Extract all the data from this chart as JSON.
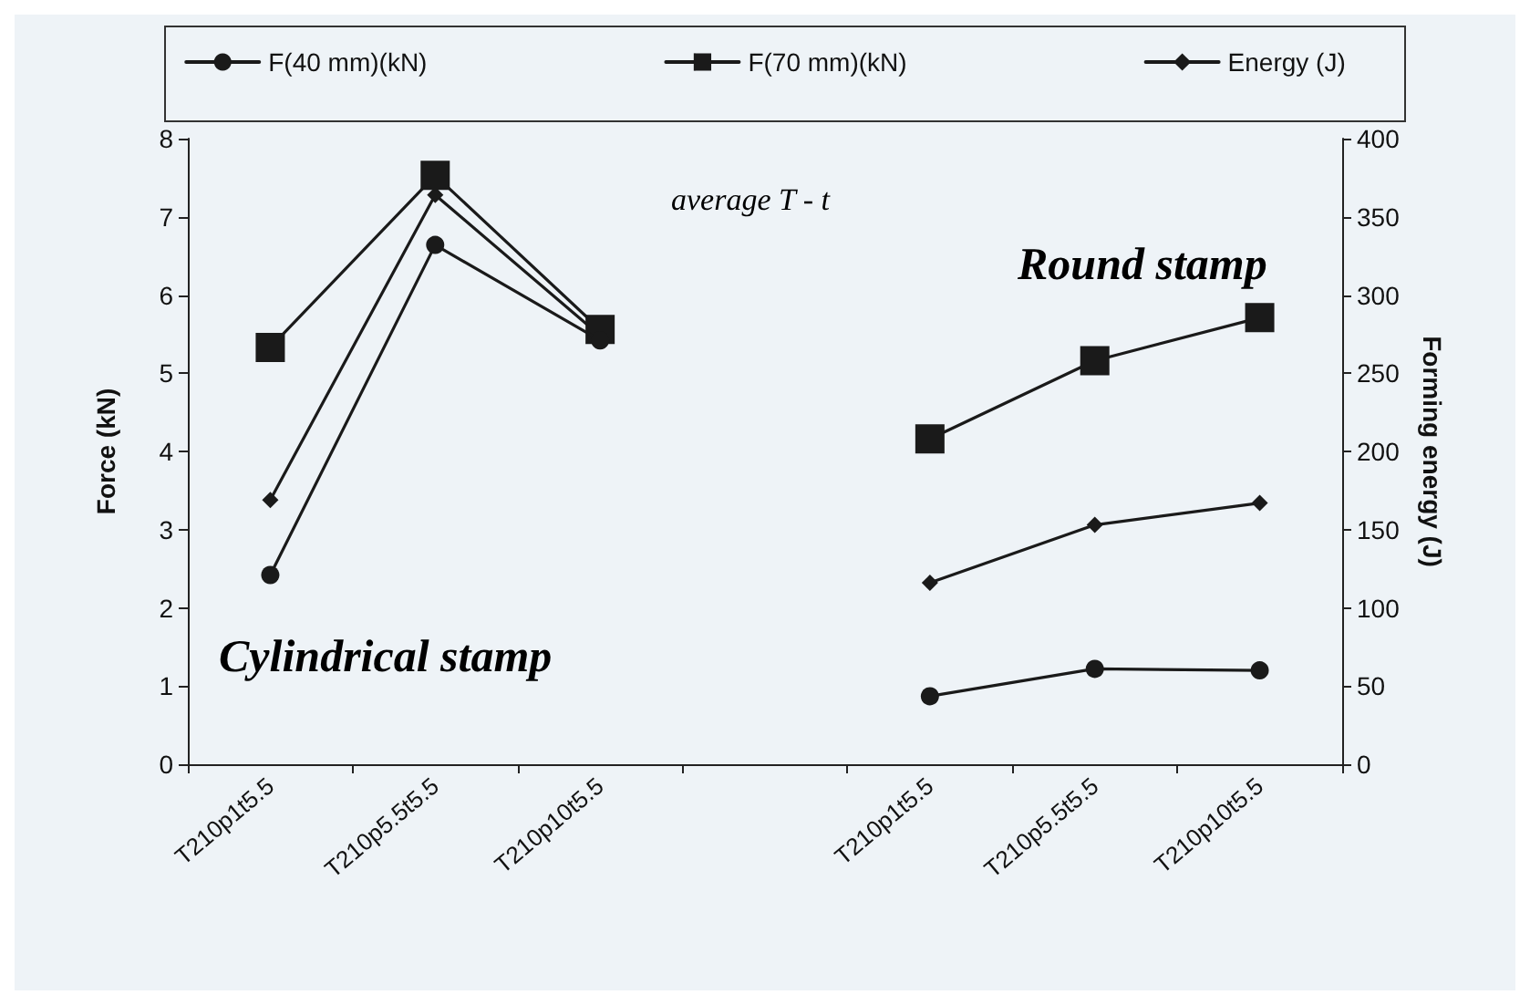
{
  "chart_data": {
    "type": "line",
    "ylabel": "Force (kN)",
    "y2label": "Forming energy (J)",
    "categories": [
      "T210p1t5.5",
      "T210p5.5t5.5",
      "T210p10t5.5",
      null,
      "T210p1t5.5",
      "T210p5.5t5.5",
      "T210p10t5.5"
    ],
    "ylim": [
      0,
      8
    ],
    "yticks": [
      0,
      1,
      2,
      3,
      4,
      5,
      6,
      7,
      8
    ],
    "y2lim": [
      0,
      400
    ],
    "y2ticks": [
      0,
      50,
      100,
      150,
      200,
      250,
      300,
      350,
      400
    ],
    "series": [
      {
        "name": "F(40 mm)(kN)",
        "color": "#1a1a1a",
        "marker": "circle",
        "values": [
          2.42,
          6.64,
          5.42,
          null,
          0.87,
          1.22,
          1.2
        ]
      },
      {
        "name": "F(70 mm)(kN)",
        "color": "#1a1a1a",
        "marker": "square",
        "values": [
          5.33,
          7.53,
          5.56,
          null,
          4.16,
          5.16,
          5.71
        ]
      },
      {
        "name": "Energy (J)",
        "color": "#1a1a1a",
        "marker": "diamond",
        "axis": "y2",
        "values": [
          169,
          364,
          274,
          null,
          116,
          153,
          167
        ]
      }
    ],
    "annotations": [
      "average T - t",
      "Cylindrical stamp",
      "Round stamp"
    ],
    "legend": "top",
    "grid": false,
    "line_style": "solid"
  }
}
